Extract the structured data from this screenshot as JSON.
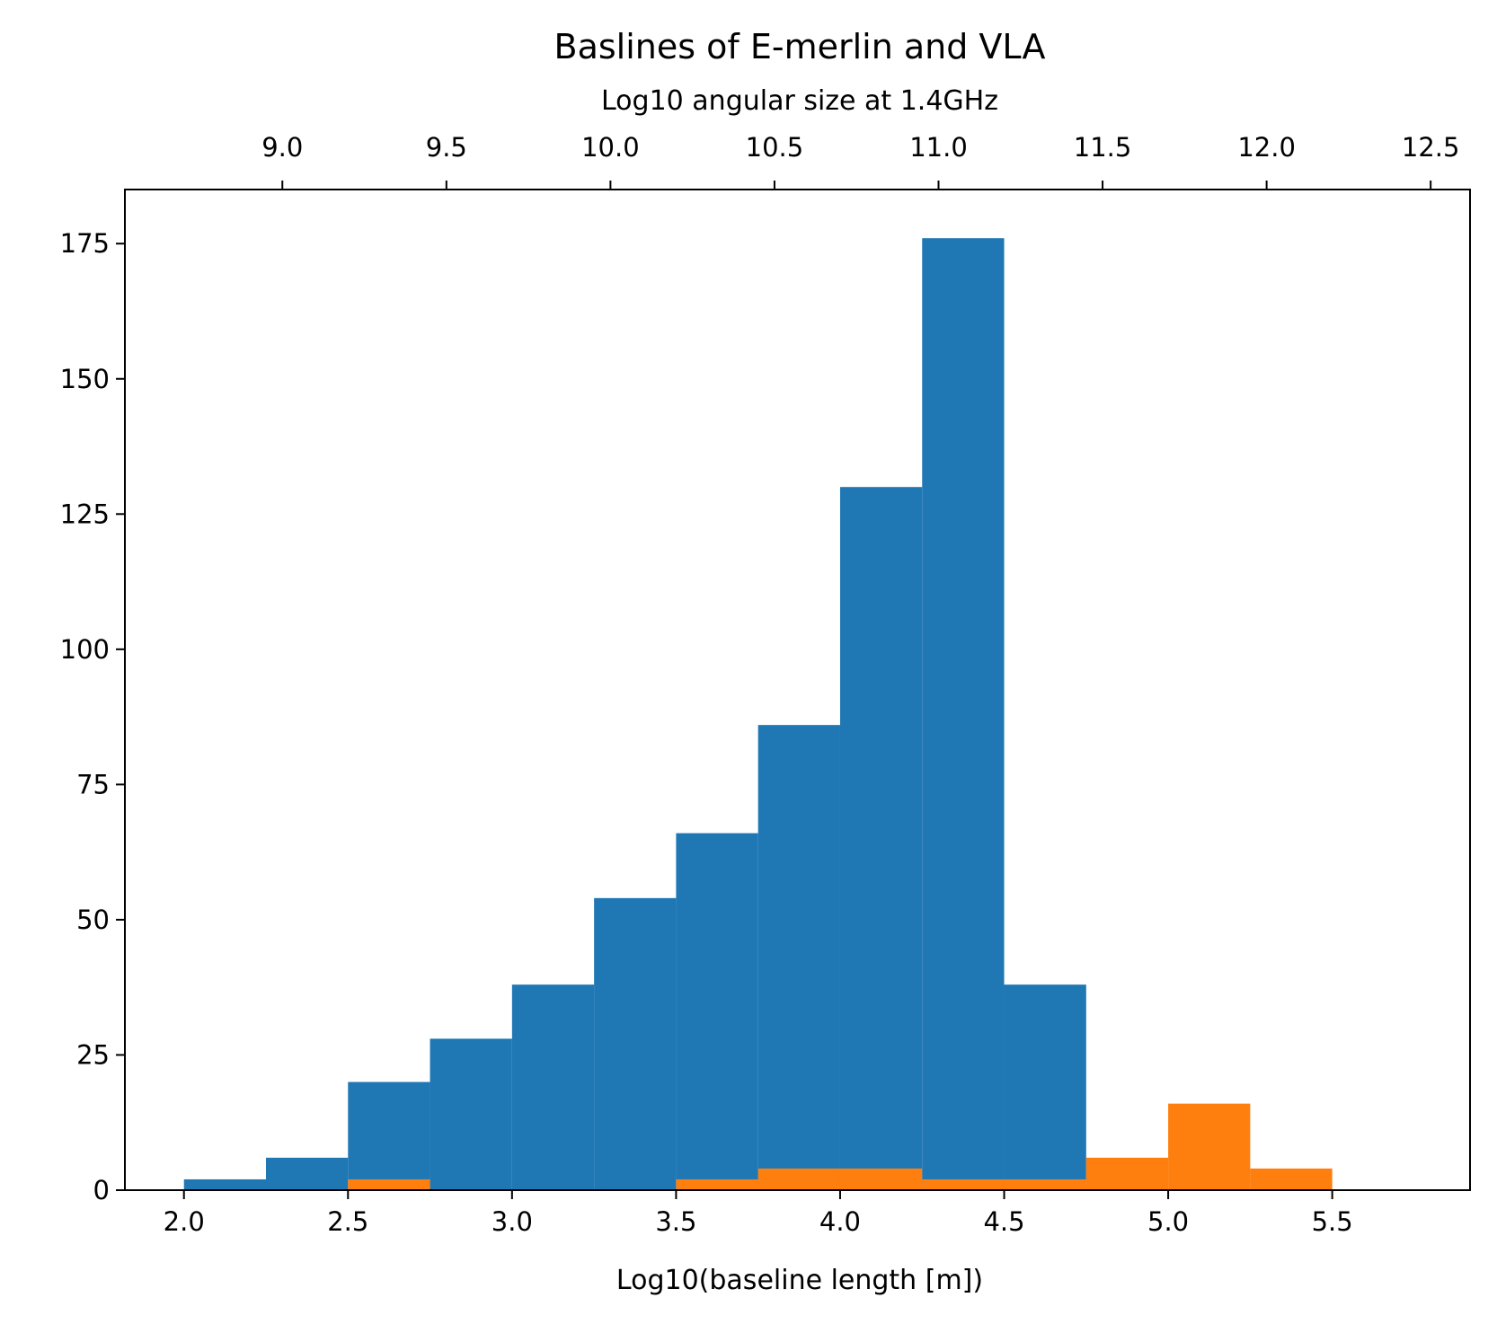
{
  "chart_data": {
    "type": "bar",
    "title": "Baslines of E-merlin and VLA",
    "xlabel": "Log10(baseline length [m])",
    "ylabel": "",
    "top_xlabel": "Log10 angular size at 1.4GHz",
    "xlim": [
      1.82,
      5.92
    ],
    "ylim": [
      0,
      185
    ],
    "x_ticks": [
      "2.0",
      "2.5",
      "3.0",
      "3.5",
      "4.0",
      "4.5",
      "5.0",
      "5.5"
    ],
    "y_ticks": [
      "0",
      "25",
      "50",
      "75",
      "100",
      "125",
      "150",
      "175"
    ],
    "top_ticks": [
      "9.0",
      "9.5",
      "10.0",
      "10.5",
      "11.0",
      "11.5",
      "12.0",
      "12.5"
    ],
    "top_tick_positions": [
      2.3,
      2.8,
      3.3,
      3.8,
      4.3,
      4.8,
      5.3,
      5.8
    ],
    "grid": false,
    "series": [
      {
        "color": "#1f77b4",
        "bins": [
          [
            2.0,
            2.25,
            2
          ],
          [
            2.25,
            2.5,
            6
          ],
          [
            2.5,
            2.75,
            20
          ],
          [
            2.75,
            3.0,
            28
          ],
          [
            3.0,
            3.25,
            38
          ],
          [
            3.25,
            3.5,
            54
          ],
          [
            3.5,
            3.75,
            66
          ],
          [
            3.75,
            4.0,
            86
          ],
          [
            4.0,
            4.25,
            130
          ],
          [
            4.25,
            4.5,
            176
          ],
          [
            4.5,
            4.75,
            38
          ]
        ]
      },
      {
        "color": "#ff7f0e",
        "bins": [
          [
            2.5,
            2.75,
            2
          ],
          [
            3.5,
            3.75,
            2
          ],
          [
            3.75,
            4.0,
            4
          ],
          [
            4.0,
            4.25,
            4
          ],
          [
            4.25,
            4.5,
            2
          ],
          [
            4.5,
            4.75,
            2
          ],
          [
            4.75,
            5.0,
            6
          ],
          [
            5.0,
            5.25,
            16
          ],
          [
            5.25,
            5.5,
            4
          ]
        ]
      }
    ]
  }
}
